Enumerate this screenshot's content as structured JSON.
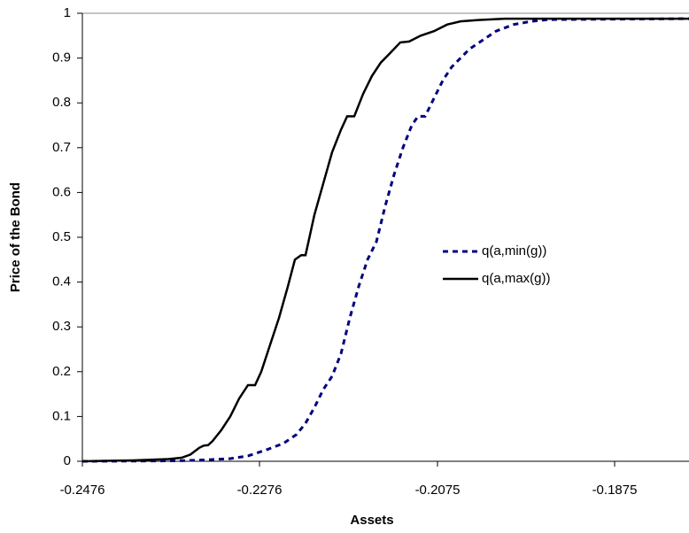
{
  "chart_data": {
    "type": "line",
    "x_label": "Assets",
    "y_label": "Price of the Bond",
    "xlim": [
      -0.2476,
      -0.1791
    ],
    "xticks": [
      -0.2476,
      -0.2276,
      -0.2075,
      -0.1875
    ],
    "ylim": [
      0,
      1
    ],
    "yticks": [
      0,
      0.1,
      0.2,
      0.3,
      0.4,
      0.5,
      0.6,
      0.7,
      0.8,
      0.9,
      1
    ],
    "legend": "right",
    "series": [
      {
        "name": "q(a,min(g))",
        "color": "#000080",
        "dash": true,
        "x": [
          -0.2476,
          -0.2369,
          -0.2339,
          -0.2309,
          -0.2289,
          -0.2269,
          -0.2249,
          -0.2234,
          -0.2224,
          -0.2214,
          -0.2204,
          -0.2194,
          -0.2184,
          -0.2174,
          -0.2164,
          -0.2154,
          -0.2144,
          -0.2134,
          -0.2124,
          -0.2114,
          -0.2104,
          -0.2097,
          -0.2089,
          -0.2079,
          -0.2069,
          -0.2059,
          -0.2049,
          -0.2039,
          -0.2024,
          -0.2009,
          -0.1989,
          -0.1969,
          -0.1949,
          -0.1791
        ],
        "values": [
          0,
          0.001,
          0.003,
          0.006,
          0.012,
          0.025,
          0.04,
          0.06,
          0.085,
          0.12,
          0.16,
          0.19,
          0.24,
          0.32,
          0.39,
          0.45,
          0.49,
          0.57,
          0.64,
          0.7,
          0.75,
          0.77,
          0.77,
          0.81,
          0.85,
          0.88,
          0.9,
          0.92,
          0.94,
          0.96,
          0.975,
          0.982,
          0.986,
          0.988
        ]
      },
      {
        "name": "q(a,max(g))",
        "color": "#000000",
        "dash": false,
        "x": [
          -0.2476,
          -0.2419,
          -0.2379,
          -0.2364,
          -0.2354,
          -0.2344,
          -0.2339,
          -0.2334,
          -0.2329,
          -0.2319,
          -0.2309,
          -0.2299,
          -0.2289,
          -0.2281,
          -0.2274,
          -0.2264,
          -0.2254,
          -0.2244,
          -0.2236,
          -0.2229,
          -0.2224,
          -0.2214,
          -0.2204,
          -0.2194,
          -0.2184,
          -0.2177,
          -0.2169,
          -0.2159,
          -0.2149,
          -0.2139,
          -0.2129,
          -0.2117,
          -0.2107,
          -0.2094,
          -0.2079,
          -0.2064,
          -0.2049,
          -0.2029,
          -0.1999,
          -0.1791
        ],
        "values": [
          0,
          0.002,
          0.005,
          0.008,
          0.015,
          0.03,
          0.035,
          0.036,
          0.045,
          0.07,
          0.1,
          0.14,
          0.17,
          0.17,
          0.2,
          0.26,
          0.32,
          0.39,
          0.45,
          0.46,
          0.46,
          0.55,
          0.62,
          0.69,
          0.74,
          0.77,
          0.77,
          0.82,
          0.86,
          0.89,
          0.91,
          0.935,
          0.937,
          0.95,
          0.96,
          0.975,
          0.982,
          0.985,
          0.988,
          0.988
        ]
      }
    ]
  }
}
